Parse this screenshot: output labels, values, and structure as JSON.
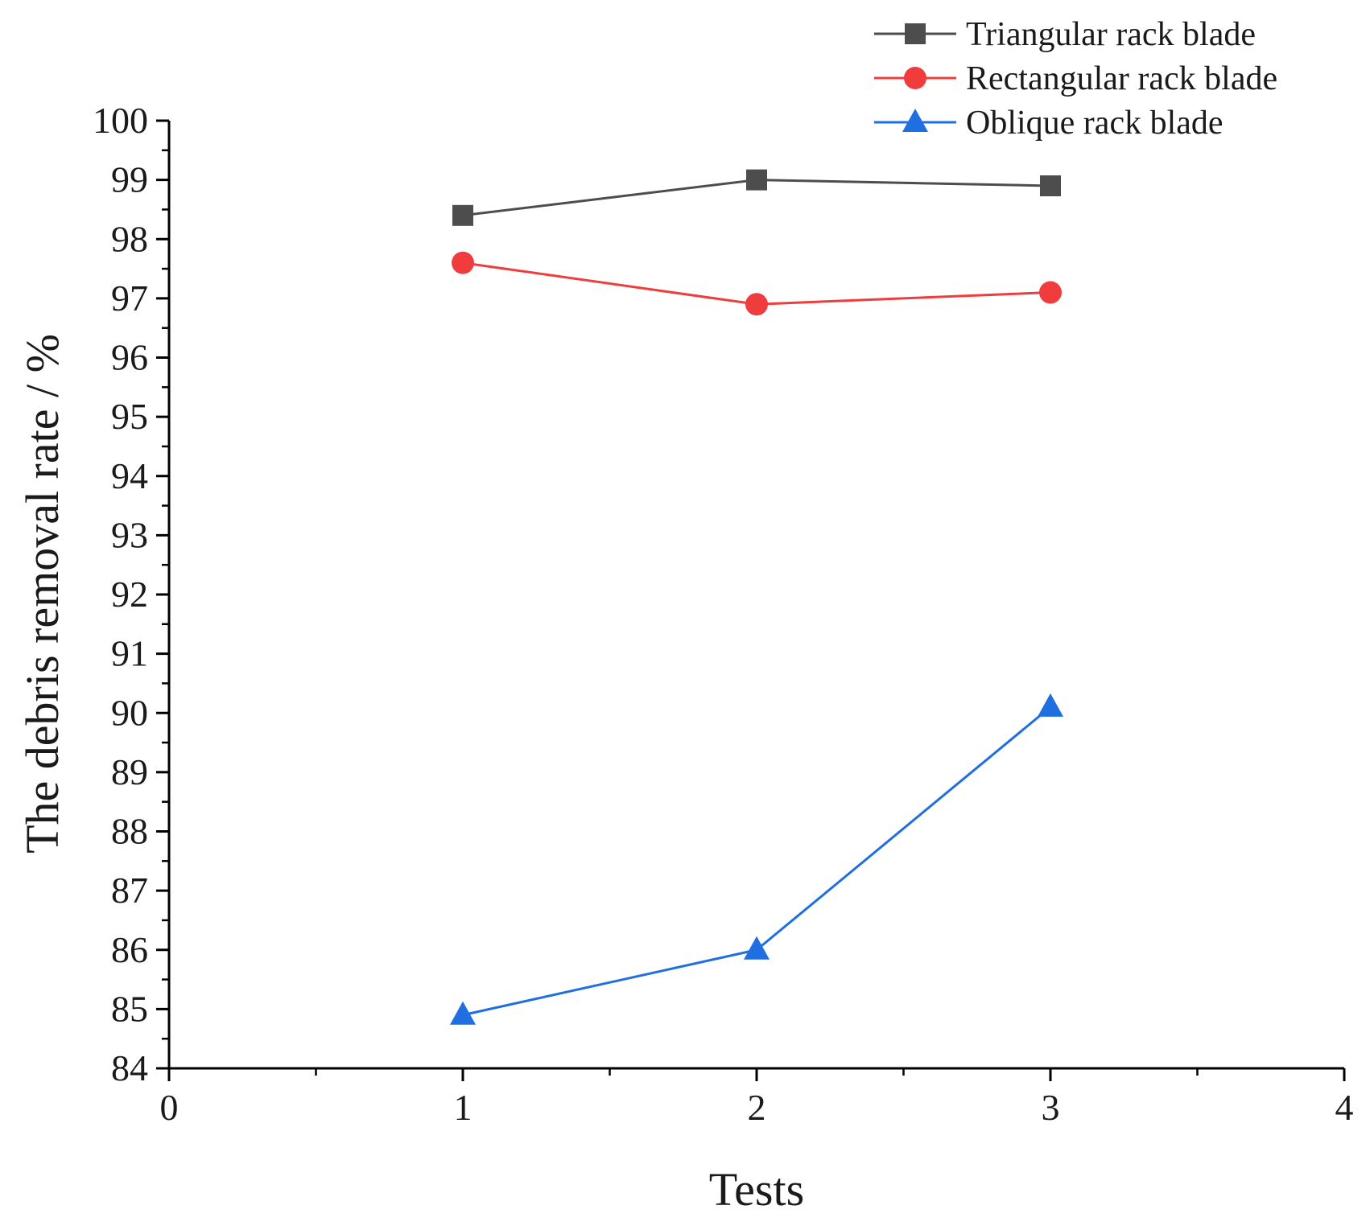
{
  "chart_data": {
    "type": "line",
    "title": "",
    "xlabel": "Tests",
    "ylabel": "The debris removal rate / %",
    "xlim": [
      0,
      4
    ],
    "ylim": [
      84,
      100
    ],
    "xticks": [
      0,
      1,
      2,
      3,
      4
    ],
    "yticks": [
      84,
      85,
      86,
      87,
      88,
      89,
      90,
      91,
      92,
      93,
      94,
      95,
      96,
      97,
      98,
      99,
      100
    ],
    "grid": false,
    "legend_position": "top-right",
    "x": [
      1,
      2,
      3
    ],
    "series": [
      {
        "name": "Triangular rack blade",
        "values": [
          98.4,
          99.0,
          98.9
        ],
        "color": "#4d4d4d",
        "marker": "square"
      },
      {
        "name": "Rectangular rack blade",
        "values": [
          97.6,
          96.9,
          97.1
        ],
        "color": "#f03c3c",
        "marker": "circle"
      },
      {
        "name": "Oblique rack blade",
        "values": [
          84.9,
          86.0,
          90.1
        ],
        "color": "#1f6fe0",
        "marker": "triangle"
      }
    ]
  }
}
